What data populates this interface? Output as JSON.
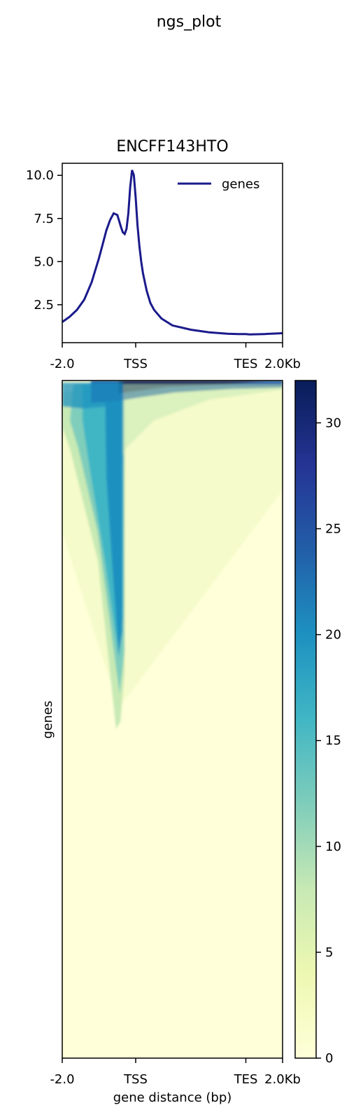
{
  "figure": {
    "suptitle": "ngs_plot"
  },
  "chart_data": [
    {
      "type": "line",
      "title": "ENCFF143HTO",
      "xlabel": "",
      "ylabel": "",
      "xlim": [
        -2000,
        4000
      ],
      "ylim": [
        0.3,
        10.7
      ],
      "yticks": [
        2.5,
        5.0,
        7.5,
        10.0
      ],
      "ytick_labels": [
        "2.5",
        "5.0",
        "7.5",
        "10.0"
      ],
      "xticks": [
        -2000,
        0,
        3000,
        4000
      ],
      "xtick_labels": [
        "-2.0",
        "TSS",
        "TES",
        "2.0Kb"
      ],
      "legend": {
        "position": "upper-right",
        "entries": [
          "genes"
        ]
      },
      "series": [
        {
          "name": "genes",
          "color": "#1a1a8c",
          "x": [
            -2000,
            -1800,
            -1600,
            -1400,
            -1200,
            -1000,
            -900,
            -800,
            -700,
            -600,
            -500,
            -400,
            -350,
            -300,
            -250,
            -200,
            -150,
            -100,
            -50,
            0,
            50,
            100,
            150,
            200,
            300,
            400,
            500,
            700,
            1000,
            1500,
            2000,
            2500,
            2800,
            3000,
            3100,
            3500,
            4000
          ],
          "y": [
            1.5,
            1.8,
            2.2,
            2.8,
            3.8,
            5.2,
            6.0,
            6.8,
            7.4,
            7.8,
            7.7,
            7.0,
            6.7,
            6.6,
            6.9,
            7.8,
            9.3,
            10.3,
            10.0,
            8.7,
            7.1,
            5.9,
            5.0,
            4.3,
            3.3,
            2.6,
            2.2,
            1.7,
            1.3,
            1.05,
            0.9,
            0.82,
            0.8,
            0.8,
            0.78,
            0.8,
            0.85
          ]
        }
      ]
    },
    {
      "type": "heatmap",
      "title": "",
      "xlabel": "gene distance (bp)",
      "ylabel": "genes",
      "xlim": [
        -2000,
        4000
      ],
      "xticks": [
        -2000,
        0,
        3000,
        4000
      ],
      "xtick_labels": [
        "-2.0",
        "TSS",
        "TES",
        "2.0Kb"
      ],
      "colormap": "YlGnBu",
      "color_range": [
        0,
        32
      ],
      "colorbar_ticks": [
        0,
        5,
        10,
        15,
        20,
        25,
        30
      ],
      "colorbar_tick_labels": [
        "0",
        "5",
        "10",
        "15",
        "20",
        "25",
        "30"
      ]
    }
  ]
}
